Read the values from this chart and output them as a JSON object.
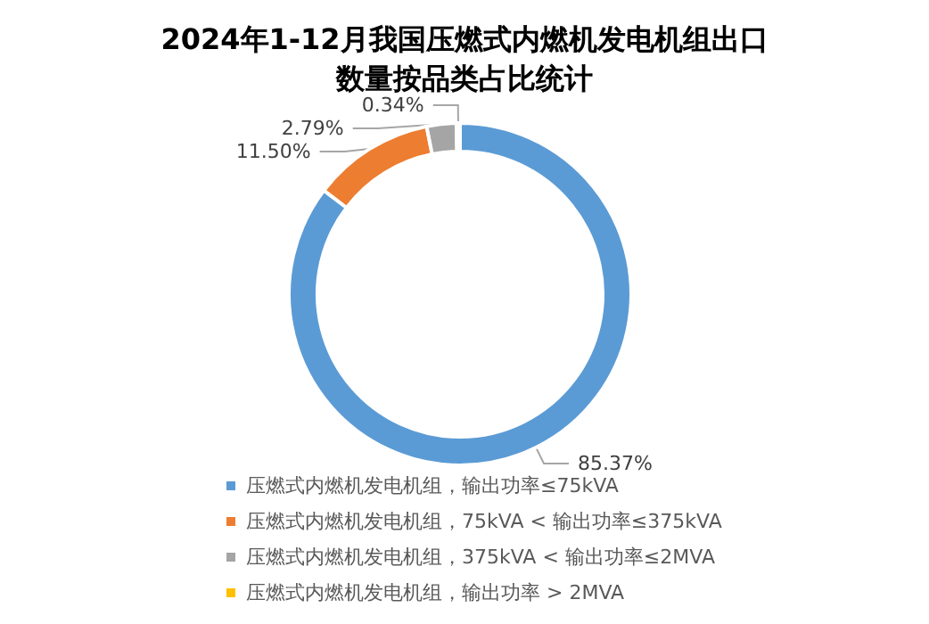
{
  "chart_data": {
    "type": "donut",
    "title": "2024年1-12月我国压燃式内燃机发电机组出口数量按品类占比统计",
    "categories": [
      "压燃式内燃机发电机组，输出功率≤75kVA",
      "压燃式内燃机发电机组，75kVA < 输出功率≤375kVA",
      "压燃式内燃机发电机组，375kVA < 输出功率≤2MVA",
      "压燃式内燃机发电机组，输出功率 > 2MVA"
    ],
    "values": [
      85.37,
      11.5,
      2.79,
      0.34
    ],
    "value_labels": [
      "85.37%",
      "11.50%",
      "2.79%",
      "0.34%"
    ],
    "colors": [
      "#5b9bd5",
      "#ed7d31",
      "#a5a5a5",
      "#ffc000"
    ],
    "legend": "bottom"
  }
}
